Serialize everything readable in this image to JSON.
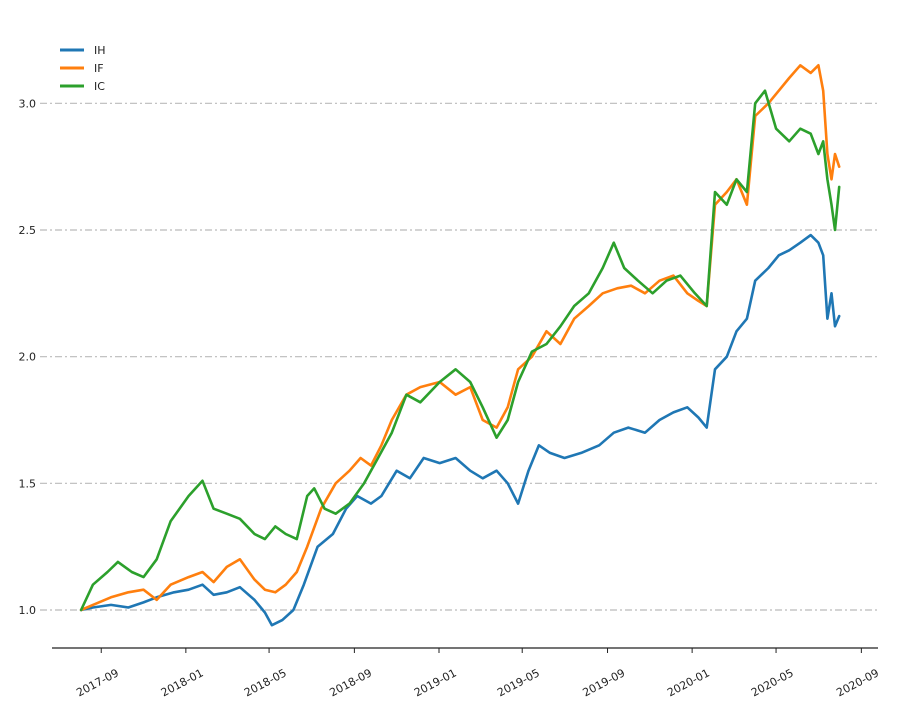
{
  "chart_data": {
    "type": "line",
    "title": "",
    "xlabel": "",
    "ylabel": "",
    "ylim": [
      0.85,
      3.25
    ],
    "yticks": [
      1.0,
      1.5,
      2.0,
      2.5,
      3.0
    ],
    "ytick_labels": [
      "1.0",
      "1.5",
      "2.0",
      "2.5",
      "3.0"
    ],
    "xlim": [
      "2017-06-22",
      "2020-09-25"
    ],
    "xticks": [
      "2017-09-01",
      "2018-01-01",
      "2018-05-01",
      "2018-09-01",
      "2019-01-01",
      "2019-05-01",
      "2019-09-01",
      "2020-01-01",
      "2020-05-01",
      "2020-09-01"
    ],
    "xtick_labels": [
      "2017-09",
      "2018-01",
      "2018-05",
      "2018-09",
      "2019-01",
      "2019-05",
      "2019-09",
      "2020-01",
      "2020-05",
      "2020-09"
    ],
    "grid": {
      "y": true,
      "x": false,
      "style": "dash-dot",
      "color": "#bbbbbb"
    },
    "legend_position": "top-left",
    "series": [
      {
        "name": "IH",
        "color": "#1f77b4",
        "points": [
          [
            "2017-08-03",
            1.0
          ],
          [
            "2017-08-20",
            1.01
          ],
          [
            "2017-09-15",
            1.02
          ],
          [
            "2017-10-10",
            1.01
          ],
          [
            "2017-11-01",
            1.03
          ],
          [
            "2017-11-20",
            1.05
          ],
          [
            "2017-12-15",
            1.07
          ],
          [
            "2018-01-05",
            1.08
          ],
          [
            "2018-01-25",
            1.1
          ],
          [
            "2018-02-10",
            1.06
          ],
          [
            "2018-03-01",
            1.07
          ],
          [
            "2018-03-20",
            1.09
          ],
          [
            "2018-04-10",
            1.04
          ],
          [
            "2018-04-25",
            0.99
          ],
          [
            "2018-05-05",
            0.94
          ],
          [
            "2018-05-20",
            0.96
          ],
          [
            "2018-06-05",
            1.0
          ],
          [
            "2018-06-20",
            1.1
          ],
          [
            "2018-07-10",
            1.25
          ],
          [
            "2018-08-01",
            1.3
          ],
          [
            "2018-08-20",
            1.4
          ],
          [
            "2018-09-05",
            1.45
          ],
          [
            "2018-09-25",
            1.42
          ],
          [
            "2018-10-10",
            1.45
          ],
          [
            "2018-11-01",
            1.55
          ],
          [
            "2018-11-20",
            1.52
          ],
          [
            "2018-12-10",
            1.6
          ],
          [
            "2019-01-02",
            1.58
          ],
          [
            "2019-01-25",
            1.6
          ],
          [
            "2019-02-15",
            1.55
          ],
          [
            "2019-03-05",
            1.52
          ],
          [
            "2019-03-25",
            1.55
          ],
          [
            "2019-04-10",
            1.5
          ],
          [
            "2019-04-25",
            1.42
          ],
          [
            "2019-05-10",
            1.55
          ],
          [
            "2019-05-25",
            1.65
          ],
          [
            "2019-06-10",
            1.62
          ],
          [
            "2019-07-01",
            1.6
          ],
          [
            "2019-07-25",
            1.62
          ],
          [
            "2019-08-20",
            1.65
          ],
          [
            "2019-09-10",
            1.7
          ],
          [
            "2019-10-01",
            1.72
          ],
          [
            "2019-10-25",
            1.7
          ],
          [
            "2019-11-15",
            1.75
          ],
          [
            "2019-12-05",
            1.78
          ],
          [
            "2019-12-25",
            1.8
          ],
          [
            "2020-01-10",
            1.76
          ],
          [
            "2020-01-22",
            1.72
          ],
          [
            "2020-02-03",
            1.95
          ],
          [
            "2020-02-20",
            2.0
          ],
          [
            "2020-03-05",
            2.1
          ],
          [
            "2020-03-20",
            2.15
          ],
          [
            "2020-04-01",
            2.3
          ],
          [
            "2020-04-20",
            2.35
          ],
          [
            "2020-05-05",
            2.4
          ],
          [
            "2020-05-20",
            2.42
          ],
          [
            "2020-06-05",
            2.45
          ],
          [
            "2020-06-20",
            2.48
          ],
          [
            "2020-07-01",
            2.45
          ],
          [
            "2020-07-08",
            2.4
          ],
          [
            "2020-07-14",
            2.15
          ],
          [
            "2020-07-20",
            2.25
          ],
          [
            "2020-07-25",
            2.12
          ],
          [
            "2020-07-31",
            2.16
          ]
        ]
      },
      {
        "name": "IF",
        "color": "#ff7f0e",
        "points": [
          [
            "2017-08-03",
            1.0
          ],
          [
            "2017-08-20",
            1.02
          ],
          [
            "2017-09-15",
            1.05
          ],
          [
            "2017-10-10",
            1.07
          ],
          [
            "2017-11-01",
            1.08
          ],
          [
            "2017-11-20",
            1.04
          ],
          [
            "2017-12-10",
            1.1
          ],
          [
            "2018-01-05",
            1.13
          ],
          [
            "2018-01-25",
            1.15
          ],
          [
            "2018-02-10",
            1.11
          ],
          [
            "2018-03-01",
            1.17
          ],
          [
            "2018-03-20",
            1.2
          ],
          [
            "2018-04-10",
            1.12
          ],
          [
            "2018-04-25",
            1.08
          ],
          [
            "2018-05-10",
            1.07
          ],
          [
            "2018-05-25",
            1.1
          ],
          [
            "2018-06-10",
            1.15
          ],
          [
            "2018-06-25",
            1.25
          ],
          [
            "2018-07-15",
            1.4
          ],
          [
            "2018-08-05",
            1.5
          ],
          [
            "2018-08-25",
            1.55
          ],
          [
            "2018-09-10",
            1.6
          ],
          [
            "2018-09-25",
            1.57
          ],
          [
            "2018-10-10",
            1.65
          ],
          [
            "2018-10-25",
            1.75
          ],
          [
            "2018-11-15",
            1.85
          ],
          [
            "2018-12-05",
            1.88
          ],
          [
            "2019-01-02",
            1.9
          ],
          [
            "2019-01-25",
            1.85
          ],
          [
            "2019-02-15",
            1.88
          ],
          [
            "2019-03-05",
            1.75
          ],
          [
            "2019-03-25",
            1.72
          ],
          [
            "2019-04-10",
            1.8
          ],
          [
            "2019-04-25",
            1.95
          ],
          [
            "2019-05-15",
            2.0
          ],
          [
            "2019-06-05",
            2.1
          ],
          [
            "2019-06-25",
            2.05
          ],
          [
            "2019-07-15",
            2.15
          ],
          [
            "2019-08-05",
            2.2
          ],
          [
            "2019-08-25",
            2.25
          ],
          [
            "2019-09-15",
            2.27
          ],
          [
            "2019-10-05",
            2.28
          ],
          [
            "2019-10-25",
            2.25
          ],
          [
            "2019-11-15",
            2.3
          ],
          [
            "2019-12-05",
            2.32
          ],
          [
            "2019-12-25",
            2.25
          ],
          [
            "2020-01-10",
            2.22
          ],
          [
            "2020-01-22",
            2.2
          ],
          [
            "2020-02-03",
            2.6
          ],
          [
            "2020-02-20",
            2.65
          ],
          [
            "2020-03-05",
            2.7
          ],
          [
            "2020-03-20",
            2.6
          ],
          [
            "2020-04-01",
            2.95
          ],
          [
            "2020-04-20",
            3.0
          ],
          [
            "2020-05-05",
            3.05
          ],
          [
            "2020-05-20",
            3.1
          ],
          [
            "2020-06-05",
            3.15
          ],
          [
            "2020-06-20",
            3.12
          ],
          [
            "2020-07-01",
            3.15
          ],
          [
            "2020-07-08",
            3.05
          ],
          [
            "2020-07-14",
            2.8
          ],
          [
            "2020-07-20",
            2.7
          ],
          [
            "2020-07-25",
            2.8
          ],
          [
            "2020-07-31",
            2.75
          ]
        ]
      },
      {
        "name": "IC",
        "color": "#2ca02c",
        "points": [
          [
            "2017-08-03",
            1.0
          ],
          [
            "2017-08-20",
            1.1
          ],
          [
            "2017-09-10",
            1.15
          ],
          [
            "2017-09-25",
            1.19
          ],
          [
            "2017-10-15",
            1.15
          ],
          [
            "2017-11-01",
            1.13
          ],
          [
            "2017-11-20",
            1.2
          ],
          [
            "2017-12-10",
            1.35
          ],
          [
            "2018-01-05",
            1.45
          ],
          [
            "2018-01-25",
            1.51
          ],
          [
            "2018-02-10",
            1.4
          ],
          [
            "2018-03-01",
            1.38
          ],
          [
            "2018-03-20",
            1.36
          ],
          [
            "2018-04-10",
            1.3
          ],
          [
            "2018-04-25",
            1.28
          ],
          [
            "2018-05-10",
            1.33
          ],
          [
            "2018-05-25",
            1.3
          ],
          [
            "2018-06-10",
            1.28
          ],
          [
            "2018-06-25",
            1.45
          ],
          [
            "2018-07-05",
            1.48
          ],
          [
            "2018-07-20",
            1.4
          ],
          [
            "2018-08-05",
            1.38
          ],
          [
            "2018-08-25",
            1.42
          ],
          [
            "2018-09-15",
            1.5
          ],
          [
            "2018-10-05",
            1.6
          ],
          [
            "2018-10-25",
            1.7
          ],
          [
            "2018-11-15",
            1.85
          ],
          [
            "2018-12-05",
            1.82
          ],
          [
            "2019-01-02",
            1.9
          ],
          [
            "2019-01-25",
            1.95
          ],
          [
            "2019-02-15",
            1.9
          ],
          [
            "2019-03-05",
            1.8
          ],
          [
            "2019-03-25",
            1.68
          ],
          [
            "2019-04-10",
            1.75
          ],
          [
            "2019-04-25",
            1.9
          ],
          [
            "2019-05-15",
            2.02
          ],
          [
            "2019-06-05",
            2.05
          ],
          [
            "2019-06-25",
            2.12
          ],
          [
            "2019-07-15",
            2.2
          ],
          [
            "2019-08-05",
            2.25
          ],
          [
            "2019-08-25",
            2.35
          ],
          [
            "2019-09-10",
            2.45
          ],
          [
            "2019-09-25",
            2.35
          ],
          [
            "2019-10-15",
            2.3
          ],
          [
            "2019-11-05",
            2.25
          ],
          [
            "2019-11-25",
            2.3
          ],
          [
            "2019-12-15",
            2.32
          ],
          [
            "2020-01-05",
            2.25
          ],
          [
            "2020-01-22",
            2.2
          ],
          [
            "2020-02-03",
            2.65
          ],
          [
            "2020-02-20",
            2.6
          ],
          [
            "2020-03-05",
            2.7
          ],
          [
            "2020-03-20",
            2.65
          ],
          [
            "2020-04-01",
            3.0
          ],
          [
            "2020-04-15",
            3.05
          ],
          [
            "2020-05-01",
            2.9
          ],
          [
            "2020-05-20",
            2.85
          ],
          [
            "2020-06-05",
            2.9
          ],
          [
            "2020-06-20",
            2.88
          ],
          [
            "2020-07-01",
            2.8
          ],
          [
            "2020-07-08",
            2.85
          ],
          [
            "2020-07-14",
            2.7
          ],
          [
            "2020-07-20",
            2.6
          ],
          [
            "2020-07-25",
            2.5
          ],
          [
            "2020-07-31",
            2.67
          ]
        ]
      }
    ]
  }
}
